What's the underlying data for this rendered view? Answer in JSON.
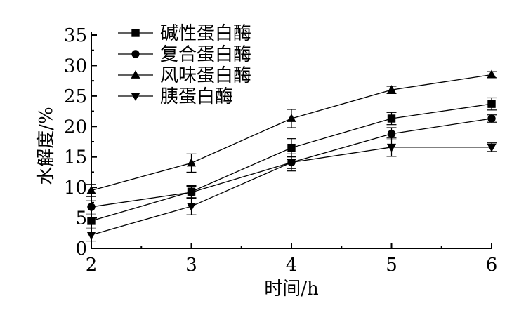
{
  "chart_data": {
    "type": "line",
    "title": "",
    "xlabel": "时间/h",
    "ylabel": "水解度/%",
    "x": [
      2,
      3,
      4,
      5,
      6
    ],
    "xlim": [
      2,
      6
    ],
    "ylim": [
      0,
      35
    ],
    "xticks": [
      "2",
      "3",
      "4",
      "5",
      "6"
    ],
    "yticks": [
      "0",
      "5",
      "10",
      "15",
      "20",
      "25",
      "30",
      "35"
    ],
    "grid": false,
    "legend_position": "top-left",
    "series": [
      {
        "name": "碱性蛋白酶",
        "marker": "square",
        "values": [
          4.5,
          9.3,
          16.5,
          21.3,
          23.7
        ],
        "errors": [
          1.0,
          1.0,
          1.5,
          1.0,
          1.0
        ]
      },
      {
        "name": "复合蛋白酶",
        "marker": "circle",
        "values": [
          6.8,
          9.2,
          14.1,
          18.8,
          21.3
        ],
        "errors": [
          1.0,
          1.0,
          1.0,
          1.0,
          0.6
        ]
      },
      {
        "name": "风味蛋白酶",
        "marker": "triangle-up",
        "values": [
          9.5,
          14.0,
          21.3,
          26.0,
          28.5
        ],
        "errors": [
          1.0,
          1.5,
          1.5,
          0.6,
          0.5
        ]
      },
      {
        "name": "胰蛋白酶",
        "marker": "triangle-down",
        "values": [
          2.2,
          6.9,
          14.1,
          16.6,
          16.6
        ],
        "errors": [
          1.0,
          1.4,
          1.4,
          1.5,
          0.7
        ]
      }
    ]
  }
}
